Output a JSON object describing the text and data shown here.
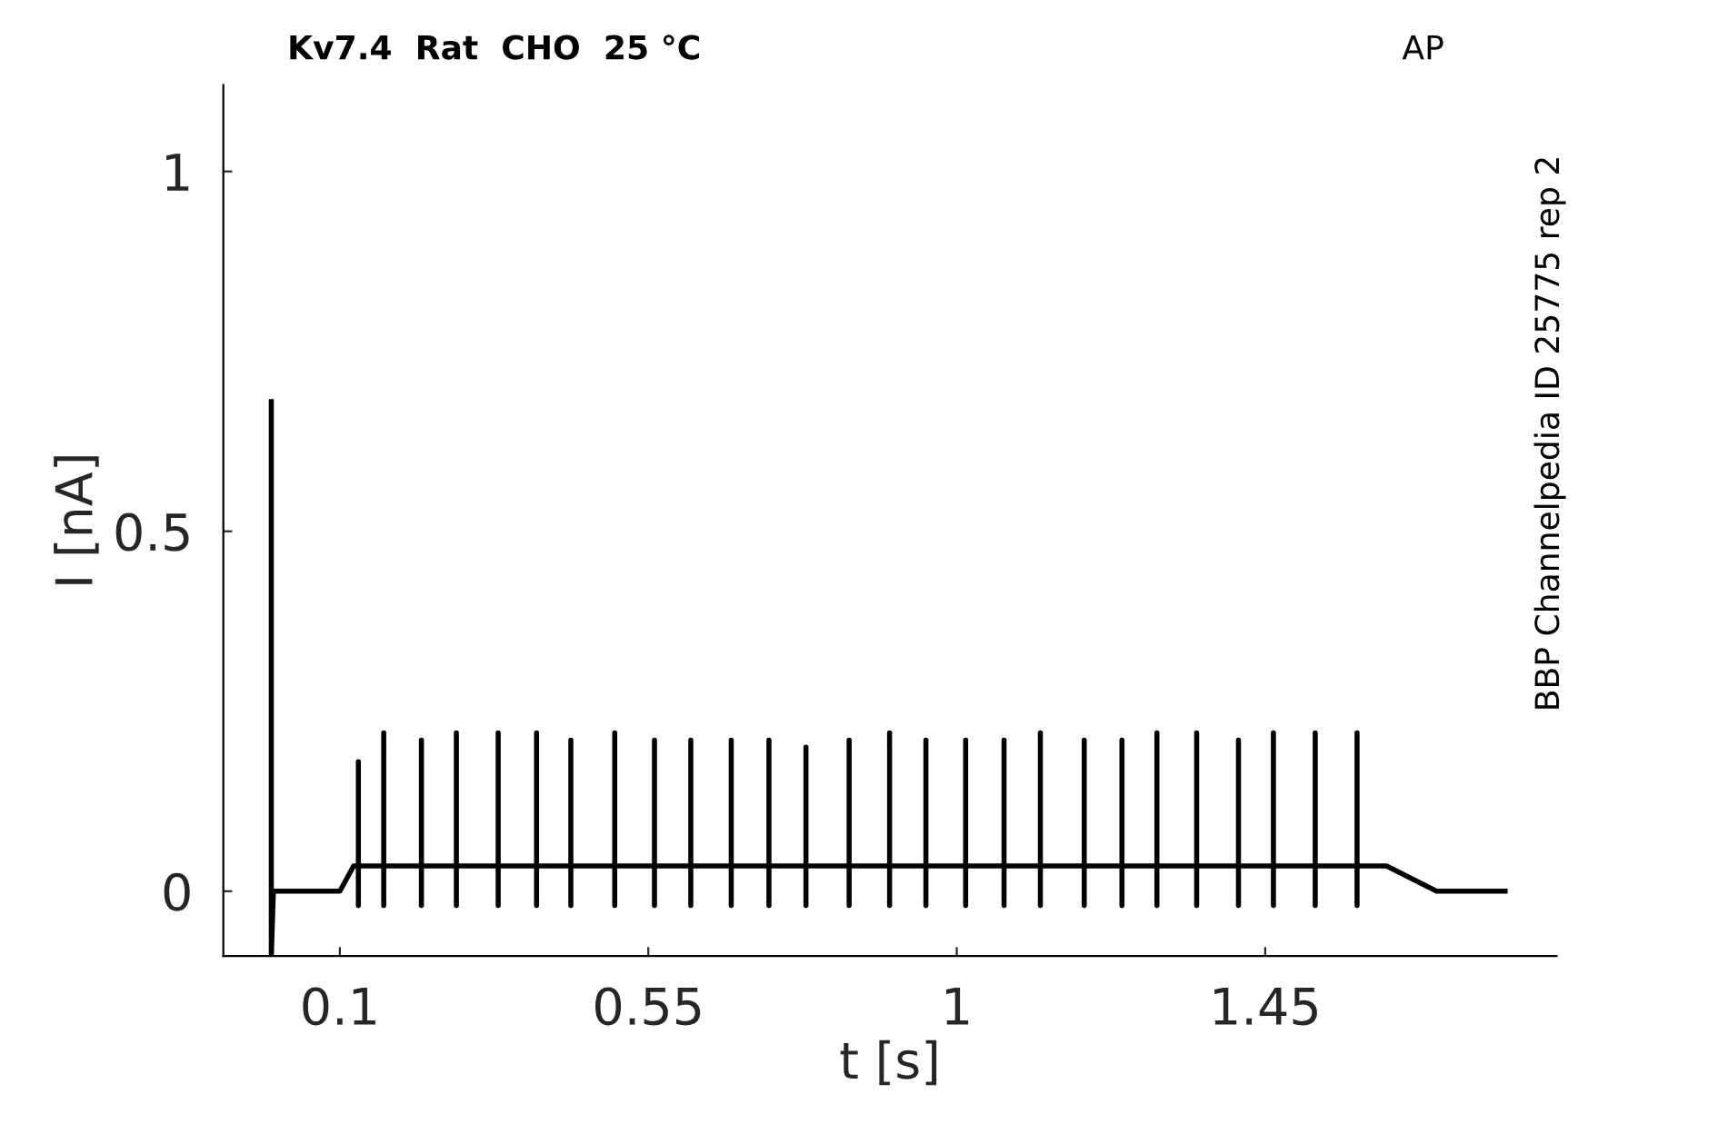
{
  "chart_data": {
    "type": "line",
    "title": "Kv7.4  Rat  CHO  25 °C",
    "xlabel": "t [s]",
    "ylabel": "I [nA]",
    "annotations": [
      "AP",
      "BBP Channelpedia ID 25775 rep 2"
    ],
    "xlim": [
      -0.07,
      1.875
    ],
    "xticks": [
      0.1,
      0.55,
      1,
      1.45
    ],
    "ylim": [
      -0.09,
      1.12
    ],
    "yticks": [
      0,
      0.5,
      1
    ],
    "grid": false,
    "marker": "none",
    "line_style": "solid",
    "series": [
      {
        "color": "#000000",
        "x": [
          0,
          0,
          0.003,
          0.1,
          0.12,
          0.127,
          0.127,
          0.127,
          0.127,
          0.164,
          0.164,
          0.164,
          0.164,
          0.219,
          0.219,
          0.219,
          0.219,
          0.27,
          0.27,
          0.27,
          0.27,
          0.331,
          0.331,
          0.331,
          0.331,
          0.387,
          0.387,
          0.387,
          0.387,
          0.437,
          0.437,
          0.437,
          0.437,
          0.501,
          0.501,
          0.501,
          0.501,
          0.559,
          0.559,
          0.559,
          0.559,
          0.612,
          0.612,
          0.612,
          0.612,
          0.671,
          0.671,
          0.671,
          0.671,
          0.726,
          0.726,
          0.726,
          0.726,
          0.78,
          0.78,
          0.78,
          0.78,
          0.843,
          0.843,
          0.843,
          0.843,
          0.902,
          0.902,
          0.902,
          0.902,
          0.955,
          0.955,
          0.955,
          0.955,
          1.013,
          1.013,
          1.013,
          1.013,
          1.069,
          1.069,
          1.069,
          1.069,
          1.122,
          1.122,
          1.122,
          1.122,
          1.186,
          1.186,
          1.186,
          1.186,
          1.241,
          1.241,
          1.241,
          1.241,
          1.292,
          1.292,
          1.292,
          1.292,
          1.35,
          1.35,
          1.35,
          1.35,
          1.411,
          1.411,
          1.411,
          1.411,
          1.462,
          1.462,
          1.462,
          1.462,
          1.523,
          1.523,
          1.523,
          1.523,
          1.584,
          1.584,
          1.584,
          1.584,
          1.627,
          1.7,
          1.8
        ],
        "values": [
          0.68,
          -0.09,
          0,
          0,
          0.035,
          0.035,
          0.18,
          -0.02,
          0.035,
          0.035,
          0.22,
          -0.02,
          0.035,
          0.035,
          0.21,
          -0.02,
          0.035,
          0.035,
          0.22,
          -0.02,
          0.035,
          0.035,
          0.22,
          -0.02,
          0.035,
          0.035,
          0.22,
          -0.02,
          0.035,
          0.035,
          0.21,
          -0.02,
          0.035,
          0.035,
          0.22,
          -0.02,
          0.035,
          0.035,
          0.21,
          -0.02,
          0.035,
          0.035,
          0.21,
          -0.02,
          0.035,
          0.035,
          0.21,
          -0.02,
          0.035,
          0.035,
          0.21,
          -0.02,
          0.035,
          0.035,
          0.2,
          -0.02,
          0.035,
          0.035,
          0.21,
          -0.02,
          0.035,
          0.035,
          0.22,
          -0.02,
          0.035,
          0.035,
          0.21,
          -0.02,
          0.035,
          0.035,
          0.21,
          -0.02,
          0.035,
          0.035,
          0.21,
          -0.02,
          0.035,
          0.035,
          0.22,
          -0.02,
          0.035,
          0.035,
          0.21,
          -0.02,
          0.035,
          0.035,
          0.21,
          -0.02,
          0.035,
          0.035,
          0.22,
          -0.02,
          0.035,
          0.035,
          0.22,
          -0.02,
          0.035,
          0.035,
          0.21,
          -0.02,
          0.035,
          0.035,
          0.22,
          -0.02,
          0.035,
          0.035,
          0.22,
          -0.02,
          0.035,
          0.035,
          0.22,
          -0.02,
          0.035,
          0.035,
          0,
          0
        ]
      }
    ]
  }
}
